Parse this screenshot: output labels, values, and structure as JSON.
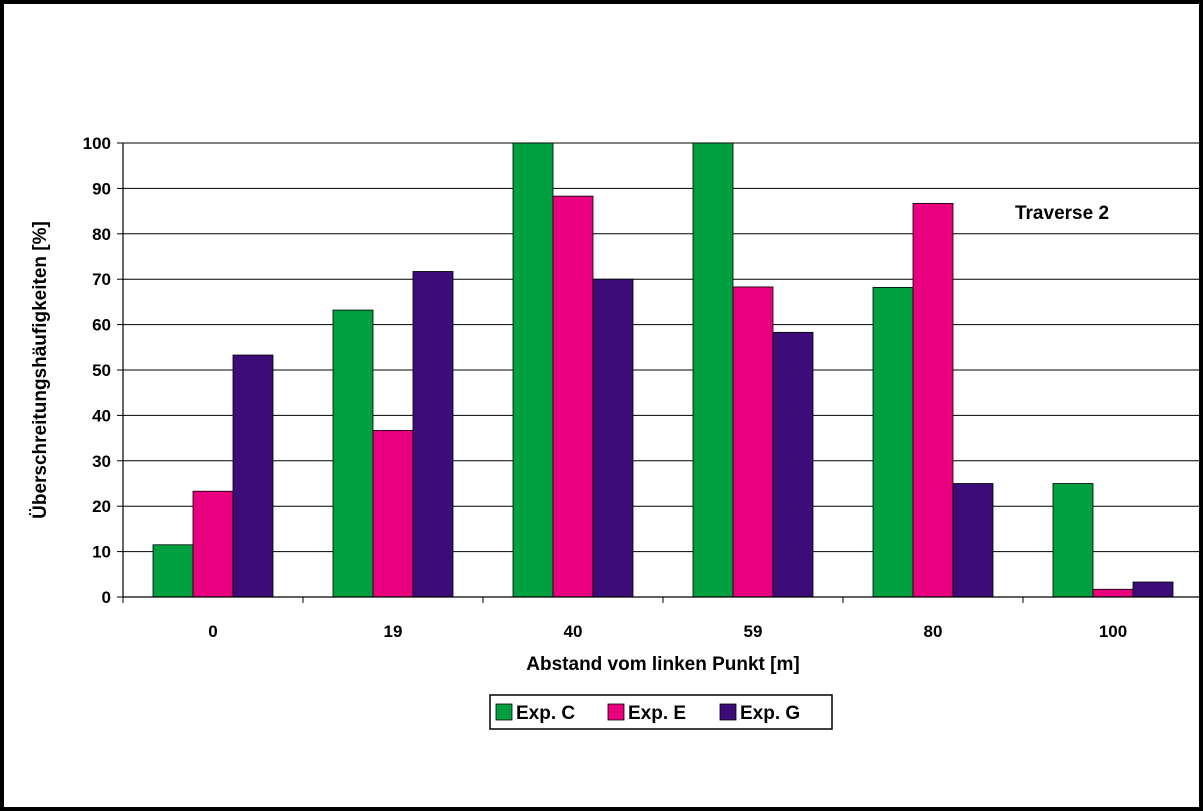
{
  "chart_data": {
    "type": "bar",
    "categories": [
      "0",
      "19",
      "40",
      "59",
      "80",
      "100"
    ],
    "series": [
      {
        "name": "Exp. C",
        "color": "#00a040",
        "values": [
          11.5,
          63.2,
          100,
          100,
          68.2,
          25
        ]
      },
      {
        "name": "Exp. E",
        "color": "#e8007f",
        "values": [
          23.3,
          36.7,
          88.3,
          68.3,
          86.7,
          1.7
        ]
      },
      {
        "name": "Exp. G",
        "color": "#3c0c78",
        "values": [
          53.3,
          71.7,
          70,
          58.3,
          25,
          3.3
        ]
      }
    ],
    "xlabel": "Abstand vom linken Punkt [m]",
    "ylabel": "Überschreitungshäufigkeiten [%]",
    "annotation": "Traverse 2",
    "ylim": [
      0,
      100
    ],
    "yticks": [
      0,
      10,
      20,
      30,
      40,
      50,
      60,
      70,
      80,
      90,
      100
    ],
    "grid": true,
    "legend_position": "bottom"
  }
}
